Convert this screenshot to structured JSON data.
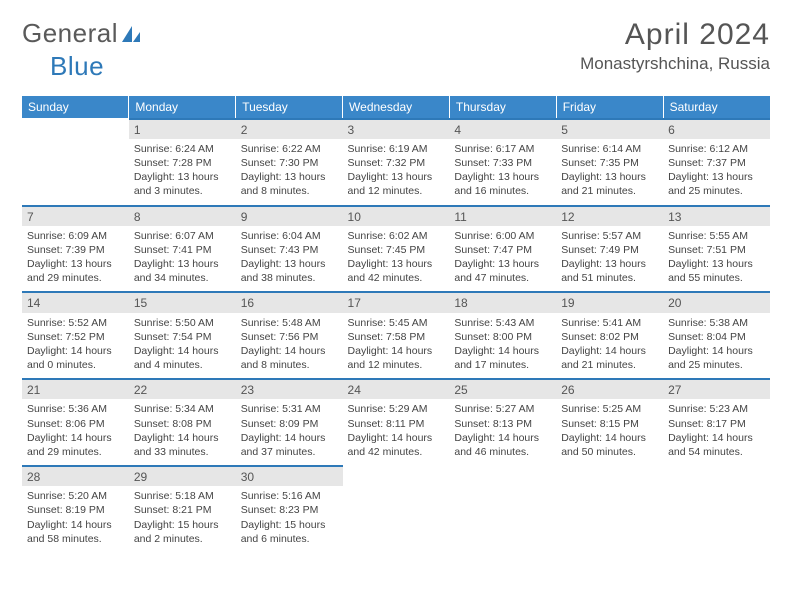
{
  "logo": {
    "text_general": "General",
    "text_blue": "Blue"
  },
  "header": {
    "month_title": "April 2024",
    "location": "Monastyrshchina, Russia"
  },
  "theme": {
    "header_bg": "#3a87c9",
    "accent": "#2e79b8",
    "daybar_bg": "#e6e6e6"
  },
  "day_labels": [
    "Sunday",
    "Monday",
    "Tuesday",
    "Wednesday",
    "Thursday",
    "Friday",
    "Saturday"
  ],
  "weeks": [
    [
      null,
      {
        "n": "1",
        "sr": "6:24 AM",
        "ss": "7:28 PM",
        "dl": "13 hours and 3 minutes."
      },
      {
        "n": "2",
        "sr": "6:22 AM",
        "ss": "7:30 PM",
        "dl": "13 hours and 8 minutes."
      },
      {
        "n": "3",
        "sr": "6:19 AM",
        "ss": "7:32 PM",
        "dl": "13 hours and 12 minutes."
      },
      {
        "n": "4",
        "sr": "6:17 AM",
        "ss": "7:33 PM",
        "dl": "13 hours and 16 minutes."
      },
      {
        "n": "5",
        "sr": "6:14 AM",
        "ss": "7:35 PM",
        "dl": "13 hours and 21 minutes."
      },
      {
        "n": "6",
        "sr": "6:12 AM",
        "ss": "7:37 PM",
        "dl": "13 hours and 25 minutes."
      }
    ],
    [
      {
        "n": "7",
        "sr": "6:09 AM",
        "ss": "7:39 PM",
        "dl": "13 hours and 29 minutes."
      },
      {
        "n": "8",
        "sr": "6:07 AM",
        "ss": "7:41 PM",
        "dl": "13 hours and 34 minutes."
      },
      {
        "n": "9",
        "sr": "6:04 AM",
        "ss": "7:43 PM",
        "dl": "13 hours and 38 minutes."
      },
      {
        "n": "10",
        "sr": "6:02 AM",
        "ss": "7:45 PM",
        "dl": "13 hours and 42 minutes."
      },
      {
        "n": "11",
        "sr": "6:00 AM",
        "ss": "7:47 PM",
        "dl": "13 hours and 47 minutes."
      },
      {
        "n": "12",
        "sr": "5:57 AM",
        "ss": "7:49 PM",
        "dl": "13 hours and 51 minutes."
      },
      {
        "n": "13",
        "sr": "5:55 AM",
        "ss": "7:51 PM",
        "dl": "13 hours and 55 minutes."
      }
    ],
    [
      {
        "n": "14",
        "sr": "5:52 AM",
        "ss": "7:52 PM",
        "dl": "14 hours and 0 minutes."
      },
      {
        "n": "15",
        "sr": "5:50 AM",
        "ss": "7:54 PM",
        "dl": "14 hours and 4 minutes."
      },
      {
        "n": "16",
        "sr": "5:48 AM",
        "ss": "7:56 PM",
        "dl": "14 hours and 8 minutes."
      },
      {
        "n": "17",
        "sr": "5:45 AM",
        "ss": "7:58 PM",
        "dl": "14 hours and 12 minutes."
      },
      {
        "n": "18",
        "sr": "5:43 AM",
        "ss": "8:00 PM",
        "dl": "14 hours and 17 minutes."
      },
      {
        "n": "19",
        "sr": "5:41 AM",
        "ss": "8:02 PM",
        "dl": "14 hours and 21 minutes."
      },
      {
        "n": "20",
        "sr": "5:38 AM",
        "ss": "8:04 PM",
        "dl": "14 hours and 25 minutes."
      }
    ],
    [
      {
        "n": "21",
        "sr": "5:36 AM",
        "ss": "8:06 PM",
        "dl": "14 hours and 29 minutes."
      },
      {
        "n": "22",
        "sr": "5:34 AM",
        "ss": "8:08 PM",
        "dl": "14 hours and 33 minutes."
      },
      {
        "n": "23",
        "sr": "5:31 AM",
        "ss": "8:09 PM",
        "dl": "14 hours and 37 minutes."
      },
      {
        "n": "24",
        "sr": "5:29 AM",
        "ss": "8:11 PM",
        "dl": "14 hours and 42 minutes."
      },
      {
        "n": "25",
        "sr": "5:27 AM",
        "ss": "8:13 PM",
        "dl": "14 hours and 46 minutes."
      },
      {
        "n": "26",
        "sr": "5:25 AM",
        "ss": "8:15 PM",
        "dl": "14 hours and 50 minutes."
      },
      {
        "n": "27",
        "sr": "5:23 AM",
        "ss": "8:17 PM",
        "dl": "14 hours and 54 minutes."
      }
    ],
    [
      {
        "n": "28",
        "sr": "5:20 AM",
        "ss": "8:19 PM",
        "dl": "14 hours and 58 minutes."
      },
      {
        "n": "29",
        "sr": "5:18 AM",
        "ss": "8:21 PM",
        "dl": "15 hours and 2 minutes."
      },
      {
        "n": "30",
        "sr": "5:16 AM",
        "ss": "8:23 PM",
        "dl": "15 hours and 6 minutes."
      },
      null,
      null,
      null,
      null
    ]
  ],
  "labels": {
    "sunrise": "Sunrise:",
    "sunset": "Sunset:",
    "daylight": "Daylight:"
  }
}
